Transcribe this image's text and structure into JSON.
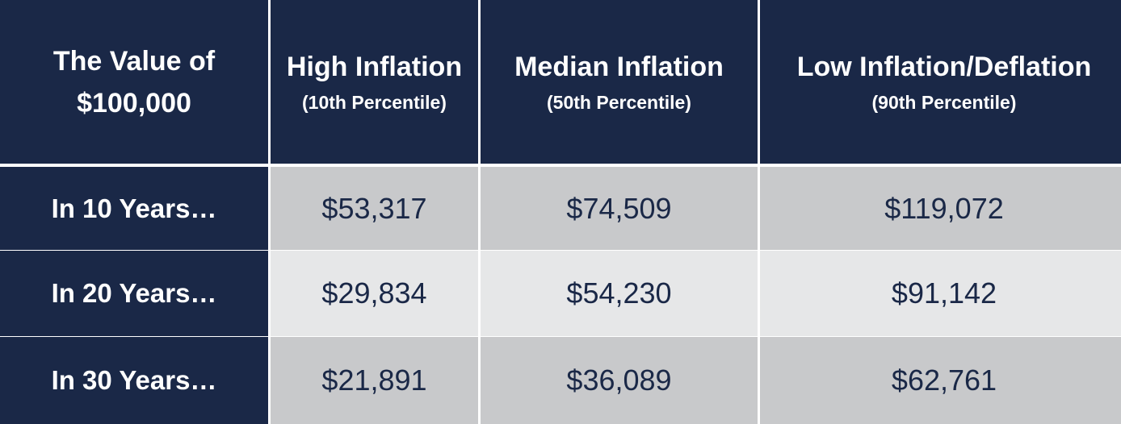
{
  "table": {
    "corner": {
      "line1": "The Value of",
      "line2": "$100,000"
    },
    "columns": [
      {
        "title": "High Inflation",
        "subtitle": "(10th Percentile)"
      },
      {
        "title": "Median Inflation",
        "subtitle": "(50th Percentile)"
      },
      {
        "title": "Low Inflation/Deflation",
        "subtitle": "(90th Percentile)"
      }
    ],
    "rows": [
      {
        "label": "In 10 Years…",
        "values": [
          "$53,317",
          "$74,509",
          "$119,072"
        ]
      },
      {
        "label": "In 20 Years…",
        "values": [
          "$29,834",
          "$54,230",
          "$91,142"
        ]
      },
      {
        "label": "In 30 Years…",
        "values": [
          "$21,891",
          "$36,089",
          "$62,761"
        ]
      }
    ],
    "colors": {
      "header_bg": "#1a2847",
      "row_dark": "#c8c9cb",
      "row_light": "#e6e7e8",
      "value_text": "#1a2847"
    }
  }
}
